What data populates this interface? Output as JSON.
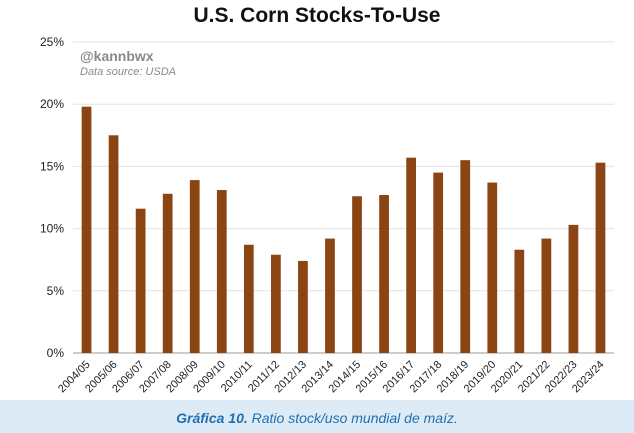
{
  "chart_data": {
    "type": "bar",
    "title": "U.S. Corn Stocks-To-Use",
    "categories": [
      "2004/05",
      "2005/06",
      "2006/07",
      "2007/08",
      "2008/09",
      "2009/10",
      "2010/11",
      "2011/12",
      "2012/13",
      "2013/14",
      "2014/15",
      "2015/16",
      "2016/17",
      "2017/18",
      "2018/19",
      "2019/20",
      "2020/21",
      "2021/22",
      "2022/23",
      "2023/24"
    ],
    "values": [
      19.8,
      17.5,
      11.6,
      12.8,
      13.9,
      13.1,
      8.7,
      7.9,
      7.4,
      9.2,
      12.6,
      12.7,
      15.7,
      14.5,
      15.5,
      13.7,
      8.3,
      9.2,
      10.3,
      15.3
    ],
    "yticks": [
      "0%",
      "5%",
      "10%",
      "15%",
      "20%",
      "25%"
    ],
    "ylim": [
      0,
      25
    ],
    "grid": true,
    "bar_color": "#8b4513",
    "handle": "@kannbwx",
    "source": "Data source: USDA"
  },
  "caption": {
    "label": "Gráfica 10.",
    "text": "Ratio stock/uso mundial de maíz."
  }
}
